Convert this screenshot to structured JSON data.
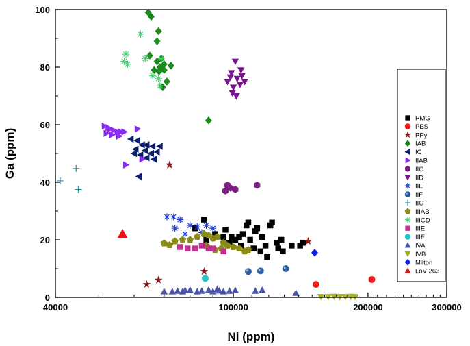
{
  "chart_data": {
    "type": "scatter",
    "xlabel": "Ni (ppm)",
    "ylabel": "Ga (ppm)",
    "x_scale": "log",
    "xlim": [
      40000,
      300000
    ],
    "ylim": [
      0,
      100
    ],
    "x_ticks": [
      {
        "value": 40000,
        "label": "40000"
      },
      {
        "value": 100000,
        "label": "100000"
      },
      {
        "value": 200000,
        "label": "200000"
      },
      {
        "value": 300000,
        "label": "300000"
      }
    ],
    "y_ticks": [
      {
        "value": 0,
        "label": "0"
      },
      {
        "value": 20,
        "label": "20"
      },
      {
        "value": 40,
        "label": "40"
      },
      {
        "value": 60,
        "label": "60"
      },
      {
        "value": 80,
        "label": "80"
      },
      {
        "value": 100,
        "label": "100"
      }
    ],
    "grid": false,
    "legend_position": "right",
    "series": [
      {
        "name": "PMG",
        "marker": "square",
        "color": "#000000",
        "points": [
          [
            86000,
            27
          ],
          [
            82000,
            24
          ],
          [
            91000,
            22
          ],
          [
            96000,
            23.5
          ],
          [
            99000,
            21
          ],
          [
            101000,
            20
          ],
          [
            103000,
            21
          ],
          [
            105000,
            22
          ],
          [
            107000,
            25
          ],
          [
            108000,
            26
          ],
          [
            112000,
            23
          ],
          [
            113000,
            24
          ],
          [
            116000,
            21
          ],
          [
            118000,
            18
          ],
          [
            119000,
            14
          ],
          [
            121000,
            25
          ],
          [
            122000,
            26
          ],
          [
            125000,
            19
          ],
          [
            128000,
            20
          ],
          [
            129000,
            16
          ],
          [
            135000,
            18
          ],
          [
            141000,
            18
          ],
          [
            143000,
            19
          ],
          [
            109000,
            20
          ],
          [
            104000,
            18
          ],
          [
            111000,
            17
          ],
          [
            98000,
            19
          ],
          [
            95000,
            21
          ],
          [
            87000,
            20
          ],
          [
            115000,
            16
          ],
          [
            126000,
            17
          ]
        ]
      },
      {
        "name": "PES",
        "marker": "circle",
        "color": "#ee1c1c",
        "points": [
          [
            153000,
            4.5
          ],
          [
            204000,
            6.2
          ]
        ]
      },
      {
        "name": "PPy",
        "marker": "star",
        "color": "#8b1a1a",
        "points": [
          [
            64000,
            4.5
          ],
          [
            68000,
            6
          ],
          [
            72000,
            46
          ],
          [
            86000,
            9
          ],
          [
            147000,
            19.5
          ]
        ]
      },
      {
        "name": "IAB",
        "marker": "diamond",
        "color": "#1b8a1b",
        "points": [
          [
            64500,
            99
          ],
          [
            65500,
            97.5
          ],
          [
            68000,
            92.5
          ],
          [
            67500,
            89
          ],
          [
            65000,
            84
          ],
          [
            69000,
            83
          ],
          [
            67500,
            82
          ],
          [
            68500,
            80
          ],
          [
            70000,
            81
          ],
          [
            71000,
            75
          ],
          [
            69500,
            73
          ],
          [
            72500,
            80.5
          ],
          [
            66500,
            79
          ],
          [
            68200,
            78.5
          ],
          [
            88000,
            61.5
          ],
          [
            70000,
            79
          ]
        ]
      },
      {
        "name": "IC",
        "marker": "tri-left",
        "color": "#0d1f6b",
        "points": [
          [
            59000,
            55
          ],
          [
            61000,
            54.5
          ],
          [
            62500,
            53
          ],
          [
            64000,
            53
          ],
          [
            66000,
            52.5
          ],
          [
            68500,
            52.5
          ],
          [
            60500,
            51.5
          ],
          [
            63500,
            51
          ],
          [
            67500,
            50.5
          ],
          [
            60000,
            50
          ],
          [
            62000,
            49.5
          ],
          [
            65500,
            50
          ],
          [
            64000,
            48.5
          ],
          [
            66500,
            48
          ],
          [
            61500,
            42
          ]
        ]
      },
      {
        "name": "IIAB",
        "marker": "tri-right",
        "color": "#8b2bf0",
        "points": [
          [
            51500,
            59.5
          ],
          [
            52500,
            59
          ],
          [
            53000,
            58.5
          ],
          [
            54000,
            58
          ],
          [
            55000,
            57.5
          ],
          [
            56000,
            57.5
          ],
          [
            52000,
            57
          ],
          [
            53500,
            56.5
          ],
          [
            55500,
            56
          ],
          [
            57000,
            57.5
          ],
          [
            61000,
            58.5
          ],
          [
            57500,
            46
          ],
          [
            62500,
            48
          ]
        ]
      },
      {
        "name": "IIC",
        "marker": "hexagon",
        "color": "#7a2080",
        "points": [
          [
            97000,
            39
          ],
          [
            98500,
            38
          ],
          [
            101000,
            37.5
          ],
          [
            96000,
            37
          ],
          [
            113000,
            39
          ]
        ]
      },
      {
        "name": "IID",
        "marker": "tri-down",
        "color": "#7a1590",
        "points": [
          [
            101000,
            82
          ],
          [
            104500,
            77
          ],
          [
            99000,
            78
          ],
          [
            102000,
            76
          ],
          [
            97000,
            75
          ],
          [
            100000,
            73
          ],
          [
            103500,
            74
          ],
          [
            106000,
            75
          ],
          [
            99500,
            71
          ],
          [
            101500,
            70
          ],
          [
            98500,
            76.5
          ],
          [
            104000,
            79
          ]
        ]
      },
      {
        "name": "IIE",
        "marker": "asterisk",
        "color": "#1a3ad8",
        "points": [
          [
            71000,
            28
          ],
          [
            73500,
            28
          ],
          [
            76000,
            27
          ],
          [
            80000,
            25
          ],
          [
            83000,
            24.5
          ],
          [
            87000,
            25
          ],
          [
            90000,
            24
          ],
          [
            74000,
            24
          ],
          [
            78000,
            22
          ],
          [
            85000,
            22.5
          ]
        ]
      },
      {
        "name": "IIF",
        "marker": "ball",
        "color": "#2f5fa0",
        "points": [
          [
            108000,
            9
          ],
          [
            115000,
            9.2
          ],
          [
            131000,
            10
          ]
        ]
      },
      {
        "name": "IIG",
        "marker": "plus",
        "color": "#2f8f9f",
        "points": [
          [
            41000,
            40.5
          ],
          [
            44500,
            44.8
          ],
          [
            45000,
            37.5
          ]
        ]
      },
      {
        "name": "IIIAB",
        "marker": "pentagon",
        "color": "#8b8b18",
        "points": [
          [
            70000,
            18.8
          ],
          [
            72000,
            18.2
          ],
          [
            74000,
            19.5
          ],
          [
            77000,
            20
          ],
          [
            80000,
            20
          ],
          [
            83000,
            21
          ],
          [
            86000,
            22
          ],
          [
            88000,
            21.5
          ],
          [
            90000,
            20.5
          ],
          [
            92000,
            21
          ],
          [
            95000,
            19
          ],
          [
            97000,
            18
          ],
          [
            100000,
            17.5
          ],
          [
            103000,
            17
          ],
          [
            106000,
            16
          ],
          [
            108000,
            16.5
          ],
          [
            87000,
            18
          ],
          [
            91000,
            16.5
          ],
          [
            94000,
            17
          ]
        ]
      },
      {
        "name": "IIICD",
        "marker": "asterisk",
        "color": "#40d070",
        "points": [
          [
            57500,
            84.5
          ],
          [
            57000,
            82
          ],
          [
            58000,
            81
          ],
          [
            62000,
            91.5
          ],
          [
            63500,
            83
          ],
          [
            66000,
            77
          ],
          [
            68000,
            76
          ],
          [
            69000,
            83
          ],
          [
            68500,
            73.5
          ]
        ]
      },
      {
        "name": "IIIE",
        "marker": "square",
        "color": "#c0308f",
        "points": [
          [
            76000,
            17.5
          ],
          [
            79000,
            17
          ],
          [
            82000,
            17
          ],
          [
            85000,
            18
          ],
          [
            88000,
            17
          ],
          [
            90000,
            17
          ],
          [
            95000,
            16
          ]
        ]
      },
      {
        "name": "IIIF",
        "marker": "circle",
        "color": "#2fc5c8",
        "points": [
          [
            86500,
            6.6
          ]
        ]
      },
      {
        "name": "IVA",
        "marker": "tri-up",
        "color": "#4a55a8",
        "points": [
          [
            70000,
            2
          ],
          [
            73000,
            2
          ],
          [
            75000,
            2.2
          ],
          [
            77000,
            2
          ],
          [
            80000,
            2.5
          ],
          [
            83000,
            2
          ],
          [
            85000,
            2.2
          ],
          [
            88000,
            2.5
          ],
          [
            90000,
            2
          ],
          [
            93000,
            2.3
          ],
          [
            95000,
            2
          ],
          [
            98000,
            2.2
          ],
          [
            101000,
            2.4
          ],
          [
            112000,
            2.2
          ],
          [
            116000,
            2.5
          ],
          [
            138000,
            1.5
          ],
          [
            92000,
            2.8
          ],
          [
            78000,
            2.4
          ]
        ]
      },
      {
        "name": "IVB",
        "marker": "tri-down",
        "color": "#a8b020",
        "points": [
          [
            157000,
            0.2
          ],
          [
            163000,
            0.2
          ],
          [
            168000,
            0.3
          ],
          [
            173000,
            0.2
          ],
          [
            178000,
            0.2
          ],
          [
            183000,
            0.3
          ],
          [
            187000,
            0.2
          ]
        ]
      },
      {
        "name": "Milton",
        "marker": "diamond",
        "color": "#1020e0",
        "points": [
          [
            152000,
            15.5
          ]
        ]
      },
      {
        "name": "LoV 263",
        "marker": "tri-up",
        "color": "#ee1010",
        "points": [
          [
            56500,
            22
          ]
        ]
      }
    ]
  }
}
